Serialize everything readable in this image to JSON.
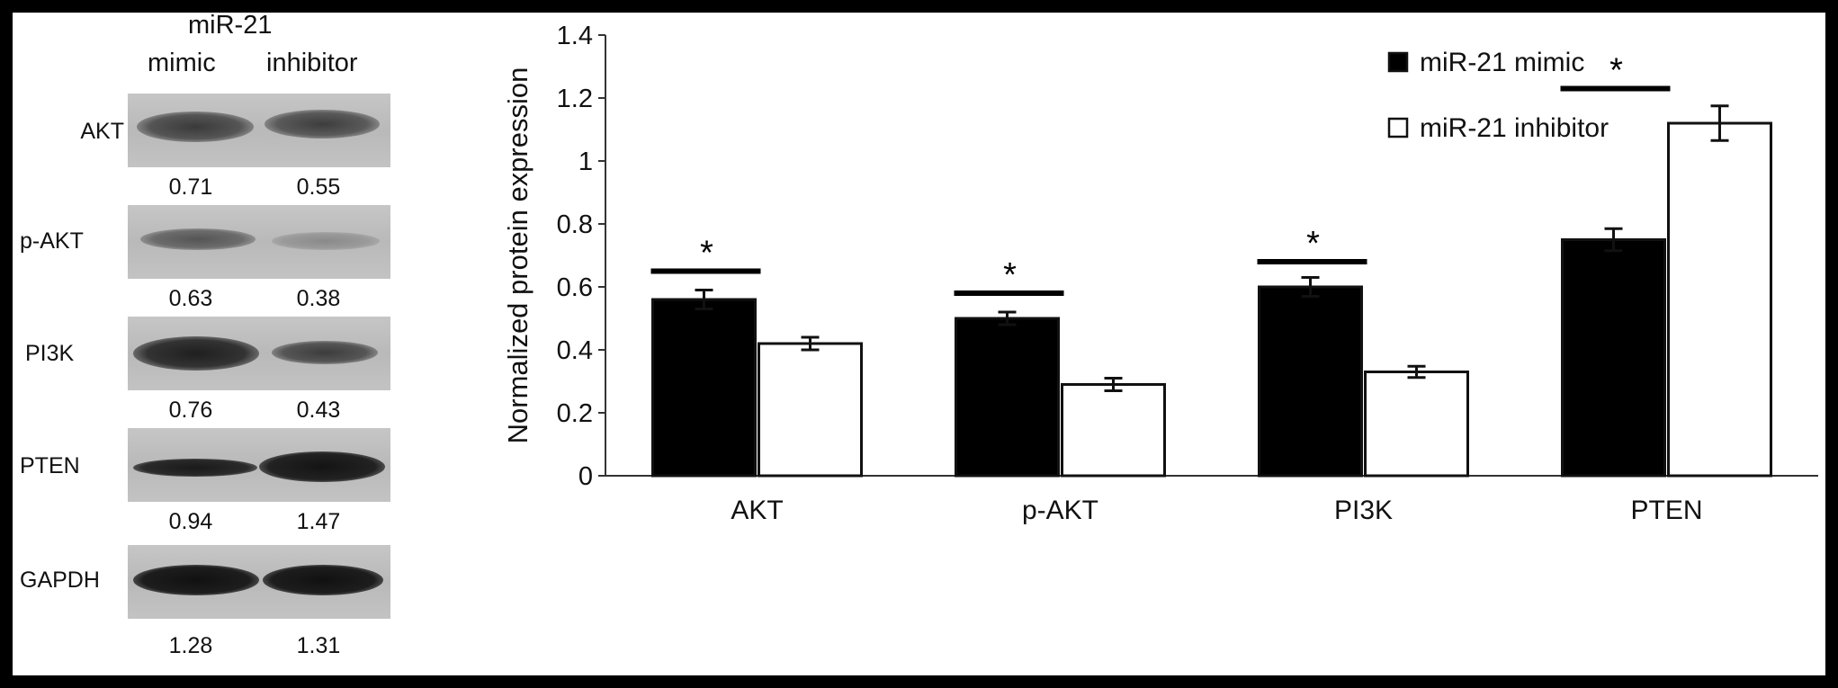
{
  "blot": {
    "header_top": "miR-21",
    "col_mimic": "mimic",
    "col_inhibitor": "inhibitor",
    "rows": [
      {
        "label": "AKT",
        "mimic": "0.71",
        "inhibitor": "0.55"
      },
      {
        "label": "p-AKT",
        "mimic": "0.63",
        "inhibitor": "0.38"
      },
      {
        "label": "PI3K",
        "mimic": "0.76",
        "inhibitor": "0.43"
      },
      {
        "label": "PTEN",
        "mimic": "0.94",
        "inhibitor": "1.47"
      },
      {
        "label": "GAPDH",
        "mimic": "1.28",
        "inhibitor": "1.31"
      }
    ]
  },
  "chart_data": {
    "type": "bar",
    "ylabel": "Normalized protein expression",
    "xlabel": "",
    "ylim": [
      0,
      1.4
    ],
    "yticks": [
      "0",
      "0.2",
      "0.4",
      "0.6",
      "0.8",
      "1",
      "1.2",
      "1.4"
    ],
    "categories": [
      "AKT",
      "p-AKT",
      "PI3K",
      "PTEN"
    ],
    "series": [
      {
        "name": "miR-21 mimic",
        "color": "#000000",
        "values": [
          0.56,
          0.5,
          0.6,
          0.75
        ],
        "errors": [
          0.03,
          0.02,
          0.03,
          0.035
        ]
      },
      {
        "name": "miR-21 inhibitor",
        "color": "#ffffff",
        "values": [
          0.42,
          0.29,
          0.33,
          1.12
        ],
        "errors": [
          0.02,
          0.02,
          0.018,
          0.055
        ]
      }
    ],
    "significance": [
      {
        "category": "AKT",
        "y": 0.65,
        "label": "*"
      },
      {
        "category": "p-AKT",
        "y": 0.58,
        "label": "*"
      },
      {
        "category": "PI3K",
        "y": 0.68,
        "label": "*"
      },
      {
        "category": "PTEN",
        "y": 1.23,
        "label": "*"
      }
    ],
    "legend_position": "top-right"
  }
}
